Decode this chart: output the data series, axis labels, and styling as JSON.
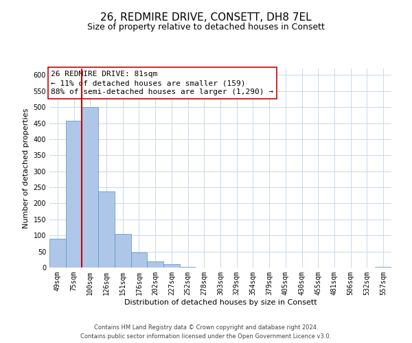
{
  "title": "26, REDMIRE DRIVE, CONSETT, DH8 7EL",
  "subtitle": "Size of property relative to detached houses in Consett",
  "xlabel": "Distribution of detached houses by size in Consett",
  "ylabel": "Number of detached properties",
  "bar_labels": [
    "49sqm",
    "75sqm",
    "100sqm",
    "126sqm",
    "151sqm",
    "176sqm",
    "202sqm",
    "227sqm",
    "252sqm",
    "278sqm",
    "303sqm",
    "329sqm",
    "354sqm",
    "379sqm",
    "405sqm",
    "430sqm",
    "455sqm",
    "481sqm",
    "506sqm",
    "532sqm",
    "557sqm"
  ],
  "bar_values": [
    90,
    458,
    500,
    237,
    105,
    46,
    20,
    11,
    2,
    0,
    0,
    0,
    0,
    0,
    0,
    0,
    0,
    0,
    0,
    0,
    2
  ],
  "bar_color": "#aec6e8",
  "bar_edge_color": "#5a8fc2",
  "highlight_color": "#cc0000",
  "ylim": [
    0,
    620
  ],
  "yticks": [
    0,
    50,
    100,
    150,
    200,
    250,
    300,
    350,
    400,
    450,
    500,
    550,
    600
  ],
  "annotation_line1": "26 REDMIRE DRIVE: 81sqm",
  "annotation_line2": "← 11% of detached houses are smaller (159)",
  "annotation_line3": "88% of semi-detached houses are larger (1,290) →",
  "annotation_box_color": "#ffffff",
  "annotation_box_edge": "#cc0000",
  "footer_line1": "Contains HM Land Registry data © Crown copyright and database right 2024.",
  "footer_line2": "Contains public sector information licensed under the Open Government Licence v3.0.",
  "bg_color": "#ffffff",
  "grid_color": "#c8d8e8",
  "title_fontsize": 11,
  "subtitle_fontsize": 9,
  "axis_label_fontsize": 8,
  "tick_fontsize": 7,
  "footer_fontsize": 6,
  "annotation_fontsize": 8
}
